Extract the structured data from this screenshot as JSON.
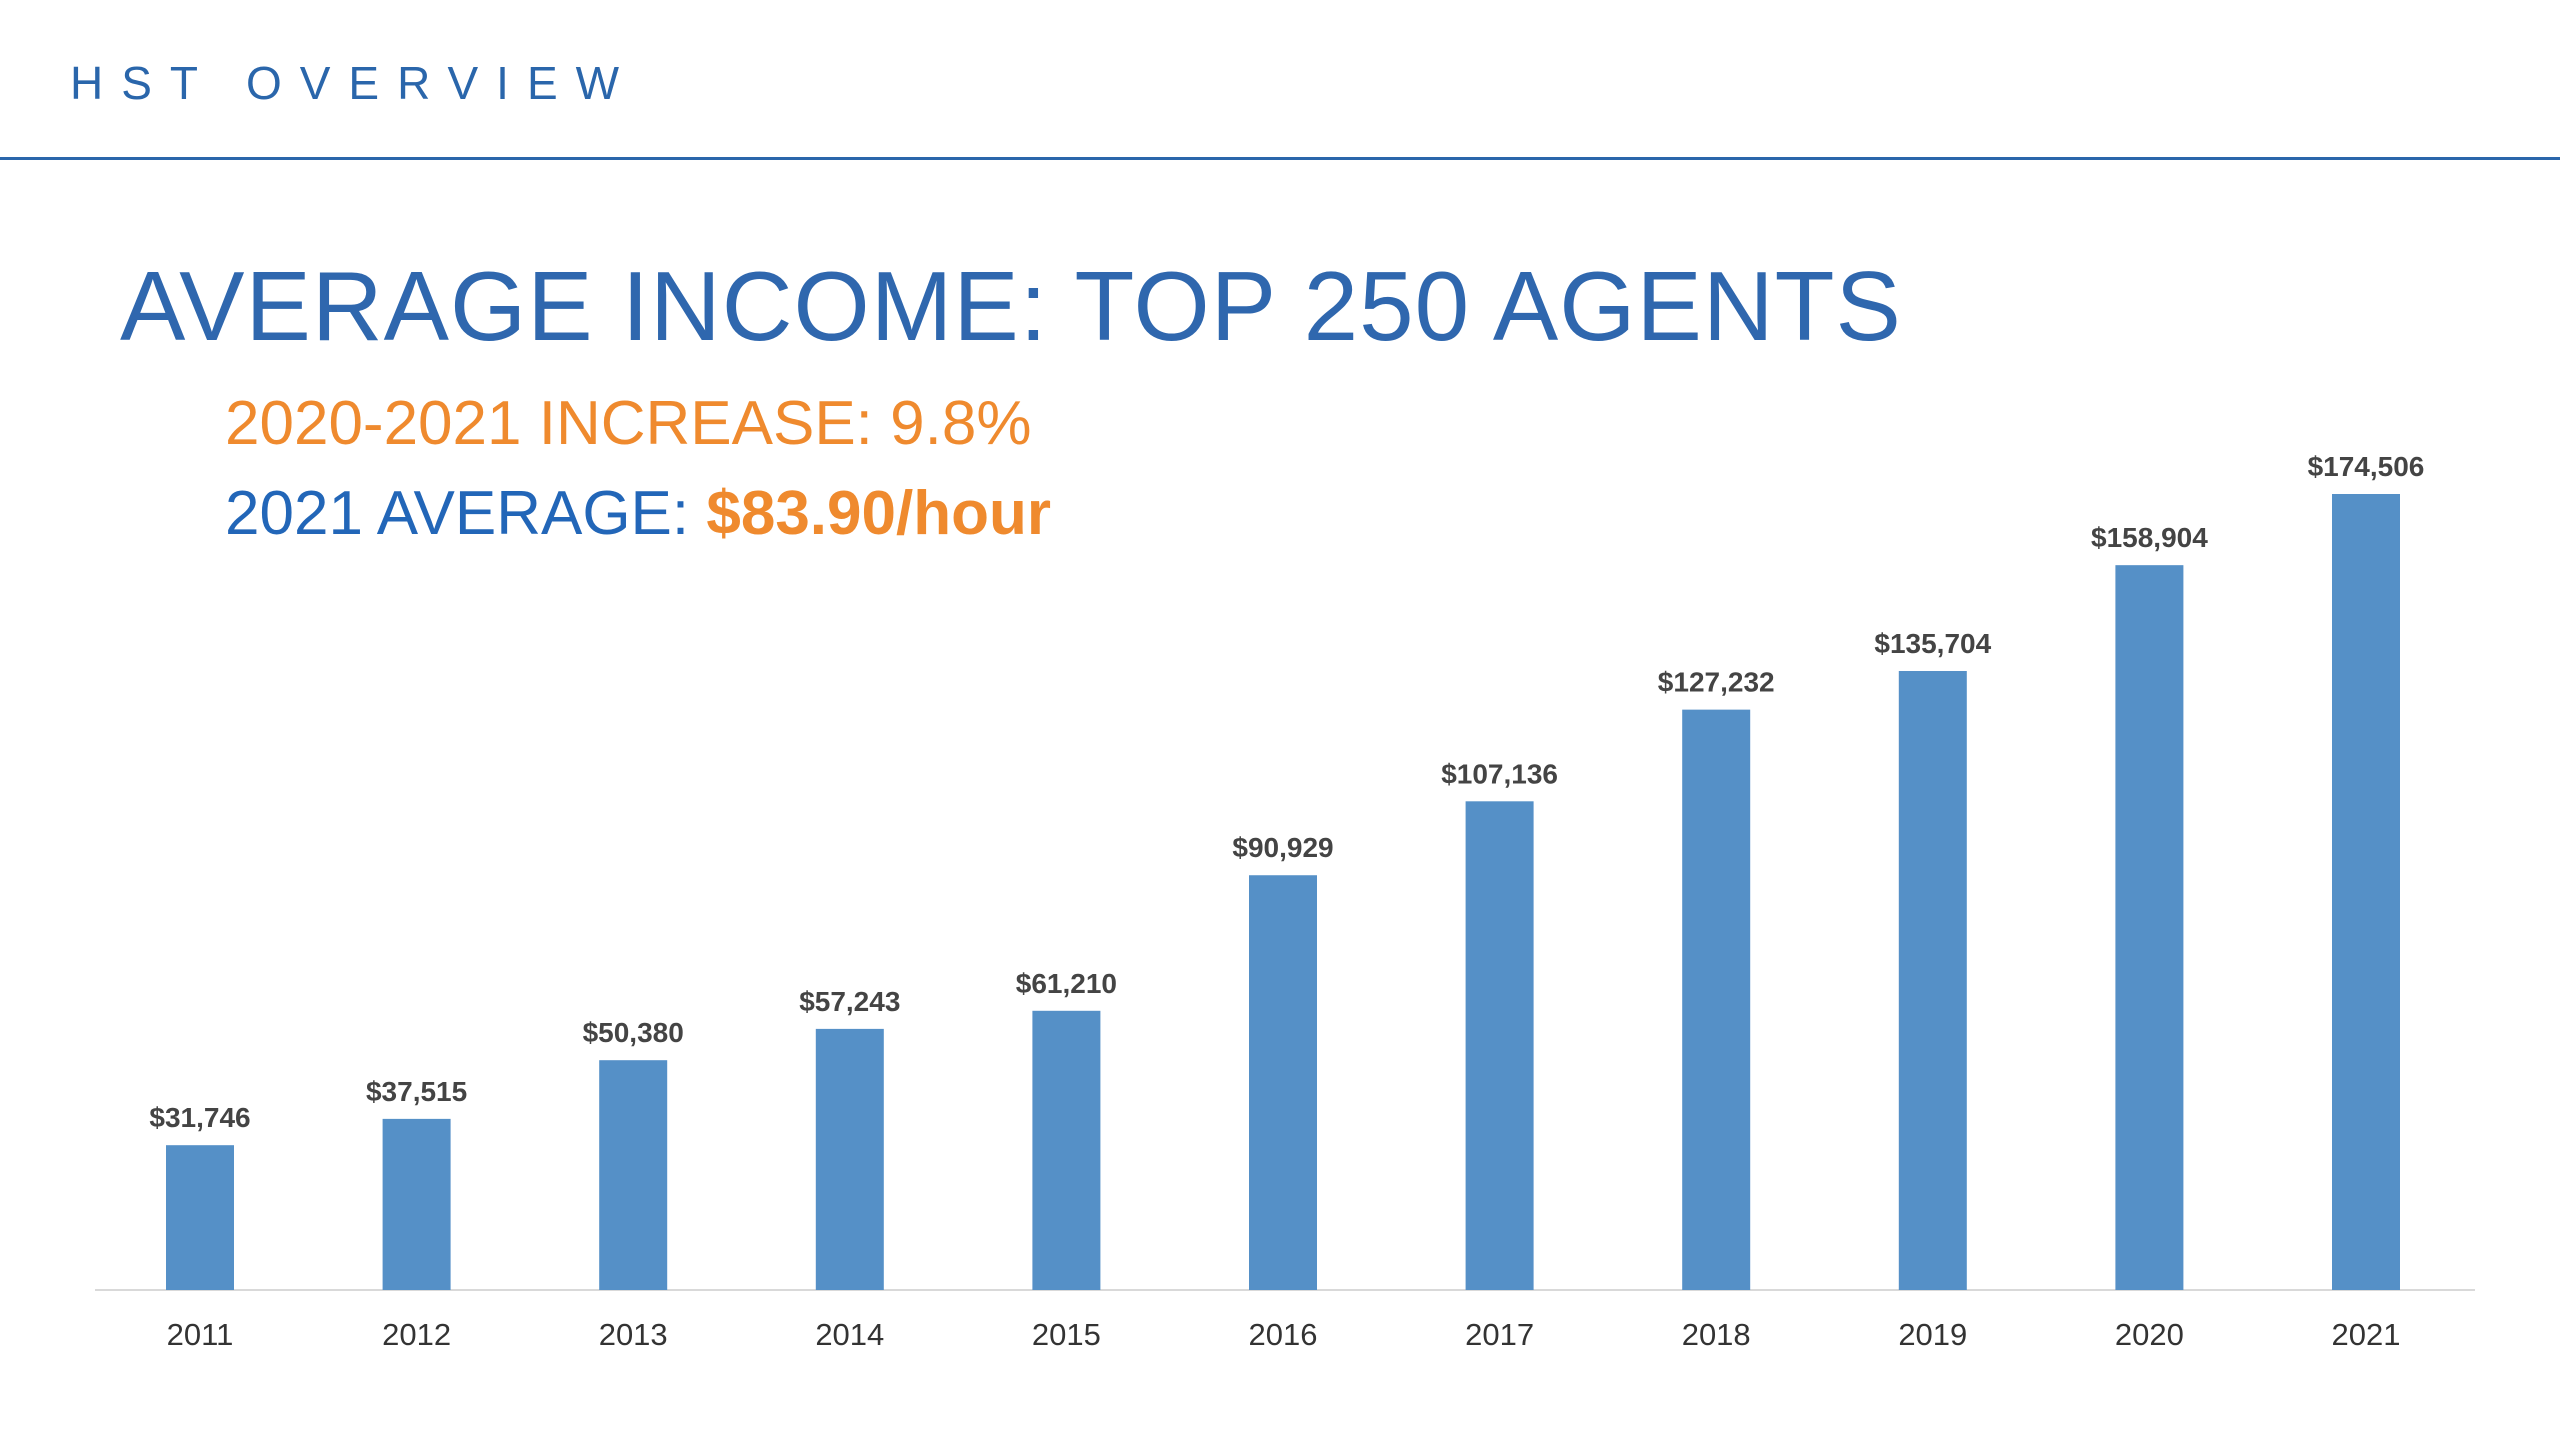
{
  "header": {
    "title": "HST OVERVIEW"
  },
  "chart_data": {
    "type": "bar",
    "title": "AVERAGE INCOME: TOP 250 AGENTS",
    "subtitle_increase": "2020-2021 INCREASE: 9.8%",
    "subtitle_average_label": "2021 AVERAGE: ",
    "subtitle_average_value": "$83.90/hour",
    "categories": [
      "2011",
      "2012",
      "2013",
      "2014",
      "2015",
      "2016",
      "2017",
      "2018",
      "2019",
      "2020",
      "2021"
    ],
    "values": [
      31746,
      37515,
      50380,
      57243,
      61210,
      90929,
      107136,
      127232,
      135704,
      158904,
      174506
    ],
    "value_labels": [
      "$31,746",
      "$37,515",
      "$50,380",
      "$57,243",
      "$61,210",
      "$90,929",
      "$107,136",
      "$127,232",
      "$135,704",
      "$158,904",
      "$174,506"
    ],
    "xlabel": "",
    "ylabel": "",
    "ylim": [
      0,
      174506
    ],
    "grid": false,
    "colors": {
      "bar": "#5590c7",
      "axis": "#d9d9d9"
    }
  }
}
